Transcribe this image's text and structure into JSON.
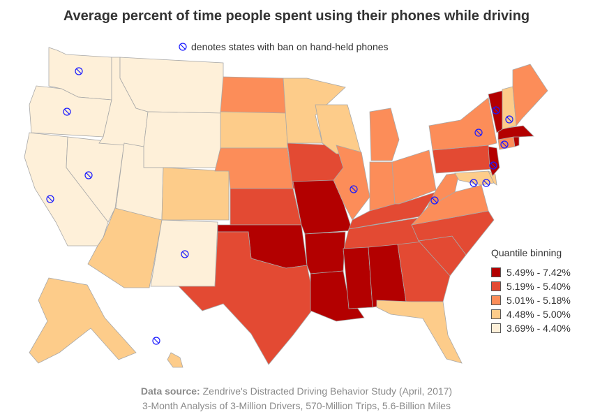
{
  "title": "Average percent of time people spent using their phones while driving",
  "ban_note": "denotes states with ban on hand-held phones",
  "legend": {
    "title": "Quantile binning",
    "bins": [
      {
        "label": "5.49% - 7.42%",
        "color": "#b30000"
      },
      {
        "label": "5.19% - 5.40%",
        "color": "#e34a33"
      },
      {
        "label": "5.01% - 5.18%",
        "color": "#fc8d59"
      },
      {
        "label": "4.48% - 5.00%",
        "color": "#fdcc8a"
      },
      {
        "label": "3.69% - 4.40%",
        "color": "#fef0d9"
      }
    ]
  },
  "source": {
    "bold": "Data source:",
    "line1_rest": " Zendrive's Distracted Driving Behavior Study (April, 2017)",
    "line2": "3-Month Analysis of 3-Million Drivers, 570-Million Trips, 5.6-Billion Miles"
  },
  "states": {
    "WA": {
      "bin": 4,
      "ban": true
    },
    "OR": {
      "bin": 4,
      "ban": true
    },
    "CA": {
      "bin": 4,
      "ban": true
    },
    "NV": {
      "bin": 4,
      "ban": true
    },
    "ID": {
      "bin": 4,
      "ban": false
    },
    "MT": {
      "bin": 4,
      "ban": false
    },
    "WY": {
      "bin": 4,
      "ban": false
    },
    "UT": {
      "bin": 4,
      "ban": false
    },
    "NM": {
      "bin": 4,
      "ban": true
    },
    "AZ": {
      "bin": 3,
      "ban": false
    },
    "CO": {
      "bin": 3,
      "ban": false
    },
    "ND": {
      "bin": 2,
      "ban": false
    },
    "SD": {
      "bin": 3,
      "ban": false
    },
    "NE": {
      "bin": 2,
      "ban": false
    },
    "KS": {
      "bin": 1,
      "ban": false
    },
    "OK": {
      "bin": 0,
      "ban": false
    },
    "TX": {
      "bin": 1,
      "ban": false
    },
    "MN": {
      "bin": 3,
      "ban": false
    },
    "IA": {
      "bin": 1,
      "ban": false
    },
    "MO": {
      "bin": 0,
      "ban": false
    },
    "AR": {
      "bin": 0,
      "ban": false
    },
    "LA": {
      "bin": 0,
      "ban": false
    },
    "WI": {
      "bin": 3,
      "ban": false
    },
    "IL": {
      "bin": 2,
      "ban": true
    },
    "MI": {
      "bin": 2,
      "ban": false
    },
    "IN": {
      "bin": 2,
      "ban": false
    },
    "OH": {
      "bin": 2,
      "ban": false
    },
    "KY": {
      "bin": 1,
      "ban": false
    },
    "TN": {
      "bin": 1,
      "ban": false
    },
    "MS": {
      "bin": 0,
      "ban": false
    },
    "AL": {
      "bin": 0,
      "ban": false
    },
    "GA": {
      "bin": 1,
      "ban": false
    },
    "FL": {
      "bin": 3,
      "ban": false
    },
    "SC": {
      "bin": 1,
      "ban": false
    },
    "NC": {
      "bin": 1,
      "ban": false
    },
    "VA": {
      "bin": 2,
      "ban": false
    },
    "WV": {
      "bin": 2,
      "ban": true
    },
    "MD": {
      "bin": 3,
      "ban": true
    },
    "DE": {
      "bin": 3,
      "ban": true
    },
    "PA": {
      "bin": 1,
      "ban": false
    },
    "NY": {
      "bin": 2,
      "ban": true
    },
    "NJ": {
      "bin": 0,
      "ban": true
    },
    "CT": {
      "bin": 2,
      "ban": true
    },
    "RI": {
      "bin": 0,
      "ban": false
    },
    "MA": {
      "bin": 0,
      "ban": false
    },
    "VT": {
      "bin": 0,
      "ban": true
    },
    "NH": {
      "bin": 3,
      "ban": true
    },
    "ME": {
      "bin": 2,
      "ban": false
    },
    "AK": {
      "bin": 3,
      "ban": false
    },
    "HI": {
      "bin": 3,
      "ban": true
    }
  }
}
